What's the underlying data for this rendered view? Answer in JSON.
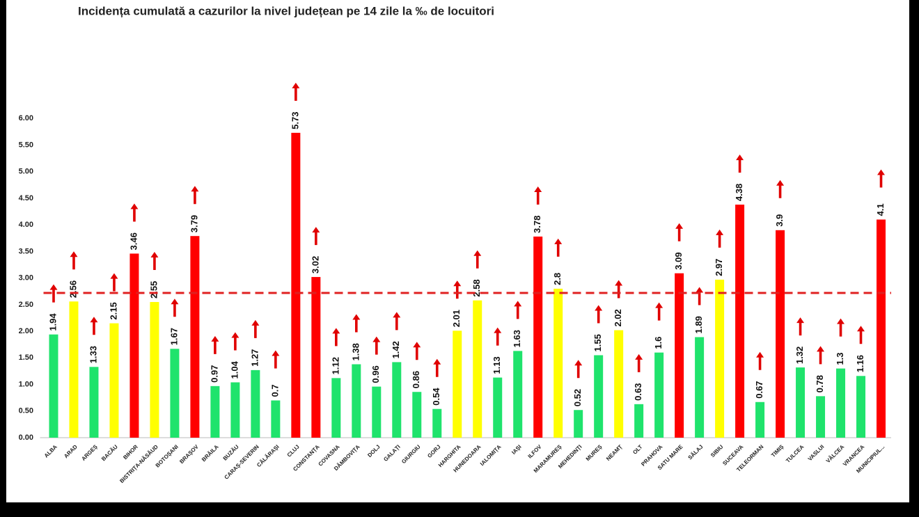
{
  "chart_data": {
    "type": "bar",
    "title": "Incidența cumulată a cazurilor la nivel județean pe 14 zile la ‰ de locuitori",
    "categories": [
      "ALBA",
      "ARAD",
      "ARGEȘ",
      "BACĂU",
      "BIHOR",
      "BISTRIȚA-NĂSĂUD",
      "BOTOȘANI",
      "BRAȘOV",
      "BRĂILA",
      "BUZĂU",
      "CARAȘ-SEVERIN",
      "CĂLĂRAȘI",
      "CLUJ",
      "CONSTANȚA",
      "COVASNA",
      "DÂMBOVIȚA",
      "DOLJ",
      "GALAȚI",
      "GIURGIU",
      "GORJ",
      "HARGHITA",
      "HUNEDOARA",
      "IALOMIȚA",
      "IAȘI",
      "ILFOV",
      "MARAMUREȘ",
      "MEHEDINȚI",
      "MUREȘ",
      "NEAMȚ",
      "OLT",
      "PRAHOVA",
      "SATU MARE",
      "SĂLAJ",
      "SIBIU",
      "SUCEAVA",
      "TELEORMAN",
      "TIMIȘ",
      "TULCEA",
      "VASLUI",
      "VÂLCEA",
      "VRANCEA",
      "MUNICIPIUL..."
    ],
    "values": [
      1.94,
      2.56,
      1.33,
      2.15,
      3.46,
      2.55,
      1.67,
      3.79,
      0.97,
      1.04,
      1.27,
      0.7,
      5.73,
      3.02,
      1.12,
      1.38,
      0.96,
      1.42,
      0.86,
      0.54,
      2.01,
      2.58,
      1.13,
      1.63,
      3.78,
      2.8,
      0.52,
      1.55,
      2.02,
      0.63,
      1.6,
      3.09,
      1.89,
      2.97,
      4.38,
      0.67,
      3.9,
      1.32,
      0.78,
      1.3,
      1.16,
      4.1
    ],
    "colors": [
      "#1fe36c",
      "#ffff00",
      "#1fe36c",
      "#ffff00",
      "#ff0000",
      "#ffff00",
      "#1fe36c",
      "#ff0000",
      "#1fe36c",
      "#1fe36c",
      "#1fe36c",
      "#1fe36c",
      "#ff0000",
      "#ff0000",
      "#1fe36c",
      "#1fe36c",
      "#1fe36c",
      "#1fe36c",
      "#1fe36c",
      "#1fe36c",
      "#ffff00",
      "#ffff00",
      "#1fe36c",
      "#1fe36c",
      "#ff0000",
      "#ffff00",
      "#1fe36c",
      "#1fe36c",
      "#ffff00",
      "#1fe36c",
      "#1fe36c",
      "#ff0000",
      "#1fe36c",
      "#ffff00",
      "#ff0000",
      "#1fe36c",
      "#ff0000",
      "#1fe36c",
      "#1fe36c",
      "#1fe36c",
      "#1fe36c",
      "#ff0000"
    ],
    "ylim": [
      0,
      6.5
    ],
    "yticks": [
      {
        "value": 0,
        "label": "0.00"
      },
      {
        "value": 0.5,
        "label": "0.50"
      },
      {
        "value": 1,
        "label": "1.00"
      },
      {
        "value": 1.5,
        "label": "1.50"
      },
      {
        "value": 2,
        "label": "2.00"
      },
      {
        "value": 2.5,
        "label": "2.50"
      },
      {
        "value": 3,
        "label": "3.00"
      },
      {
        "value": 3.5,
        "label": "3.50"
      },
      {
        "value": 4,
        "label": "4.00"
      },
      {
        "value": 4.5,
        "label": "4.50"
      },
      {
        "value": 5,
        "label": "5.00"
      },
      {
        "value": 5.5,
        "label": "5.50"
      },
      {
        "value": 6,
        "label": "6.00"
      }
    ],
    "reference_line": 2.72,
    "reference_color": "#e02020",
    "grid": false
  }
}
